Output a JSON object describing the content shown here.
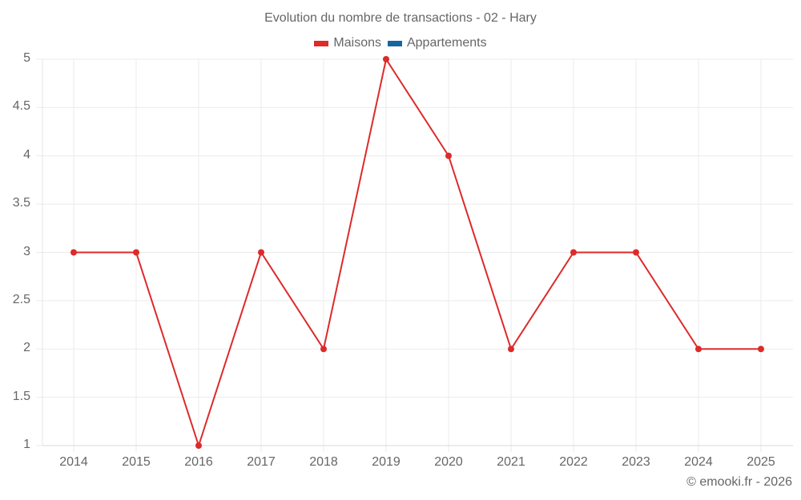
{
  "title": "Evolution du nombre de transactions - 02 - Hary",
  "legend": [
    {
      "label": "Maisons",
      "color": "#dd2a2a"
    },
    {
      "label": "Appartements",
      "color": "#1565a0"
    }
  ],
  "footer": "© emooki.fr - 2026",
  "y_ticks": [
    "5",
    "4.5",
    "4",
    "3.5",
    "3",
    "2.5",
    "2",
    "1.5",
    "1"
  ],
  "x_ticks": [
    "2014",
    "2015",
    "2016",
    "2017",
    "2018",
    "2019",
    "2020",
    "2021",
    "2022",
    "2023",
    "2024",
    "2025"
  ],
  "chart_data": {
    "type": "line",
    "title": "Evolution du nombre de transactions - 02 - Hary",
    "xlabel": "",
    "ylabel": "",
    "categories": [
      "2014",
      "2015",
      "2016",
      "2017",
      "2018",
      "2019",
      "2020",
      "2021",
      "2022",
      "2023",
      "2024",
      "2025"
    ],
    "series": [
      {
        "name": "Maisons",
        "color": "#dd2a2a",
        "values": [
          3,
          3,
          1,
          3,
          2,
          5,
          4,
          2,
          3,
          3,
          2,
          2
        ]
      },
      {
        "name": "Appartements",
        "color": "#1565a0",
        "values": []
      }
    ],
    "ylim": [
      1,
      5
    ],
    "y_tick_step": 0.5,
    "grid": true,
    "legend_position": "top"
  }
}
